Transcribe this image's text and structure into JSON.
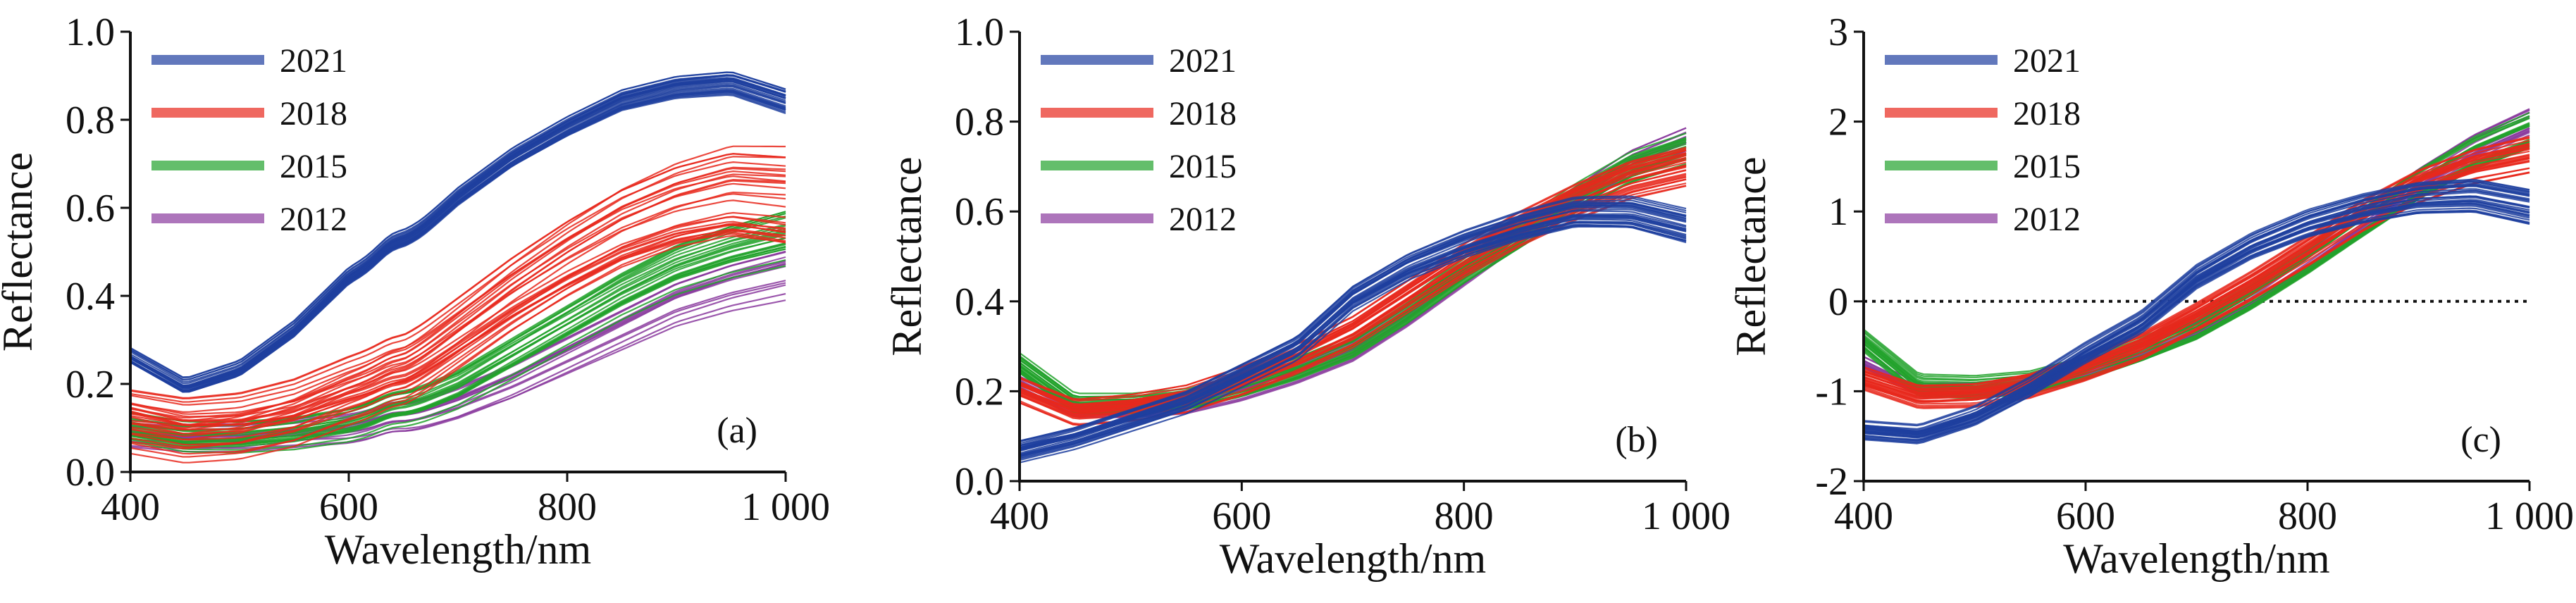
{
  "chart_data": [
    {
      "type": "line",
      "panel_label": "(a)",
      "xlabel": "Wavelength/nm",
      "ylabel": "Reflectance",
      "xlim": [
        400,
        1000
      ],
      "ylim": [
        0,
        1
      ],
      "xticks": [
        "400",
        "600",
        "800",
        "1 000"
      ],
      "yticks": [
        "0.0",
        "0.2",
        "0.4",
        "0.6",
        "0.8",
        "1.0"
      ],
      "legend_position": "top-left",
      "x": [
        400,
        450,
        500,
        550,
        600,
        650,
        700,
        750,
        800,
        850,
        900,
        950,
        1000
      ],
      "series": [
        {
          "name": "2021",
          "color": "#1f3f9f",
          "count": 30,
          "spread": 0.06,
          "values": [
            0.26,
            0.19,
            0.23,
            0.32,
            0.44,
            0.51,
            0.62,
            0.71,
            0.78,
            0.84,
            0.87,
            0.88,
            0.84
          ]
        },
        {
          "name": "2018",
          "color": "#e8281c",
          "count": 30,
          "spread": 0.22,
          "values": [
            0.12,
            0.1,
            0.11,
            0.14,
            0.19,
            0.23,
            0.32,
            0.41,
            0.49,
            0.56,
            0.61,
            0.64,
            0.63
          ]
        },
        {
          "name": "2015",
          "color": "#22a22c",
          "count": 25,
          "spread": 0.14,
          "values": [
            0.1,
            0.08,
            0.08,
            0.09,
            0.11,
            0.14,
            0.19,
            0.26,
            0.33,
            0.4,
            0.46,
            0.5,
            0.53
          ]
        },
        {
          "name": "2012",
          "color": "#8a3a9e",
          "count": 15,
          "spread": 0.12,
          "values": [
            0.08,
            0.07,
            0.07,
            0.08,
            0.09,
            0.11,
            0.15,
            0.2,
            0.26,
            0.32,
            0.38,
            0.42,
            0.45
          ]
        }
      ]
    },
    {
      "type": "line",
      "panel_label": "(b)",
      "xlabel": "Wavelength/nm",
      "ylabel": "Reflectance",
      "xlim": [
        400,
        1000
      ],
      "ylim": [
        0,
        1
      ],
      "xticks": [
        "400",
        "600",
        "800",
        "1 000"
      ],
      "yticks": [
        "0.0",
        "0.2",
        "0.4",
        "0.6",
        "0.8",
        "1.0"
      ],
      "legend_position": "top-left",
      "x": [
        400,
        450,
        500,
        550,
        600,
        650,
        700,
        750,
        800,
        850,
        900,
        950,
        1000
      ],
      "series": [
        {
          "name": "2021",
          "color": "#1f3f9f",
          "count": 30,
          "spread": 0.08,
          "values": [
            0.07,
            0.1,
            0.14,
            0.18,
            0.24,
            0.3,
            0.41,
            0.48,
            0.53,
            0.57,
            0.6,
            0.6,
            0.57
          ]
        },
        {
          "name": "2018",
          "color": "#e8281c",
          "count": 30,
          "spread": 0.09,
          "values": [
            0.2,
            0.15,
            0.16,
            0.18,
            0.22,
            0.27,
            0.33,
            0.41,
            0.49,
            0.56,
            0.62,
            0.67,
            0.7
          ]
        },
        {
          "name": "2015",
          "color": "#22a22c",
          "count": 25,
          "spread": 0.08,
          "values": [
            0.26,
            0.17,
            0.17,
            0.18,
            0.21,
            0.25,
            0.3,
            0.38,
            0.47,
            0.55,
            0.63,
            0.7,
            0.74
          ]
        },
        {
          "name": "2012",
          "color": "#8a3a9e",
          "count": 15,
          "spread": 0.06,
          "values": [
            0.22,
            0.16,
            0.16,
            0.17,
            0.2,
            0.24,
            0.29,
            0.37,
            0.46,
            0.55,
            0.63,
            0.71,
            0.76
          ]
        }
      ]
    },
    {
      "type": "line",
      "panel_label": "(c)",
      "xlabel": "Wavelength/nm",
      "ylabel": "Reflectance",
      "xlim": [
        400,
        1000
      ],
      "ylim": [
        -2,
        3
      ],
      "xticks": [
        "400",
        "600",
        "800",
        "1 000"
      ],
      "yticks": [
        "-2",
        "-1",
        "0",
        "1",
        "2",
        "3"
      ],
      "zero_line": "dotted",
      "legend_position": "top-left",
      "x": [
        400,
        450,
        500,
        550,
        600,
        650,
        700,
        750,
        800,
        850,
        900,
        950,
        1000
      ],
      "series": [
        {
          "name": "2021",
          "color": "#1f3f9f",
          "count": 30,
          "spread": 0.4,
          "values": [
            -1.45,
            -1.5,
            -1.3,
            -0.98,
            -0.6,
            -0.26,
            0.25,
            0.6,
            0.85,
            1.02,
            1.14,
            1.17,
            1.05
          ]
        },
        {
          "name": "2018",
          "color": "#e8281c",
          "count": 30,
          "spread": 0.45,
          "values": [
            -0.85,
            -1.05,
            -1.03,
            -0.92,
            -0.72,
            -0.48,
            -0.15,
            0.2,
            0.58,
            0.98,
            1.3,
            1.52,
            1.65
          ]
        },
        {
          "name": "2015",
          "color": "#22a22c",
          "count": 25,
          "spread": 0.4,
          "values": [
            -0.45,
            -0.95,
            -0.97,
            -0.92,
            -0.76,
            -0.55,
            -0.3,
            0.05,
            0.45,
            0.88,
            1.3,
            1.65,
            1.9
          ]
        },
        {
          "name": "2012",
          "color": "#8a3a9e",
          "count": 15,
          "spread": 0.3,
          "values": [
            -0.7,
            -1.0,
            -1.0,
            -0.94,
            -0.78,
            -0.57,
            -0.32,
            0.03,
            0.45,
            0.9,
            1.35,
            1.72,
            2.0
          ]
        }
      ]
    }
  ]
}
